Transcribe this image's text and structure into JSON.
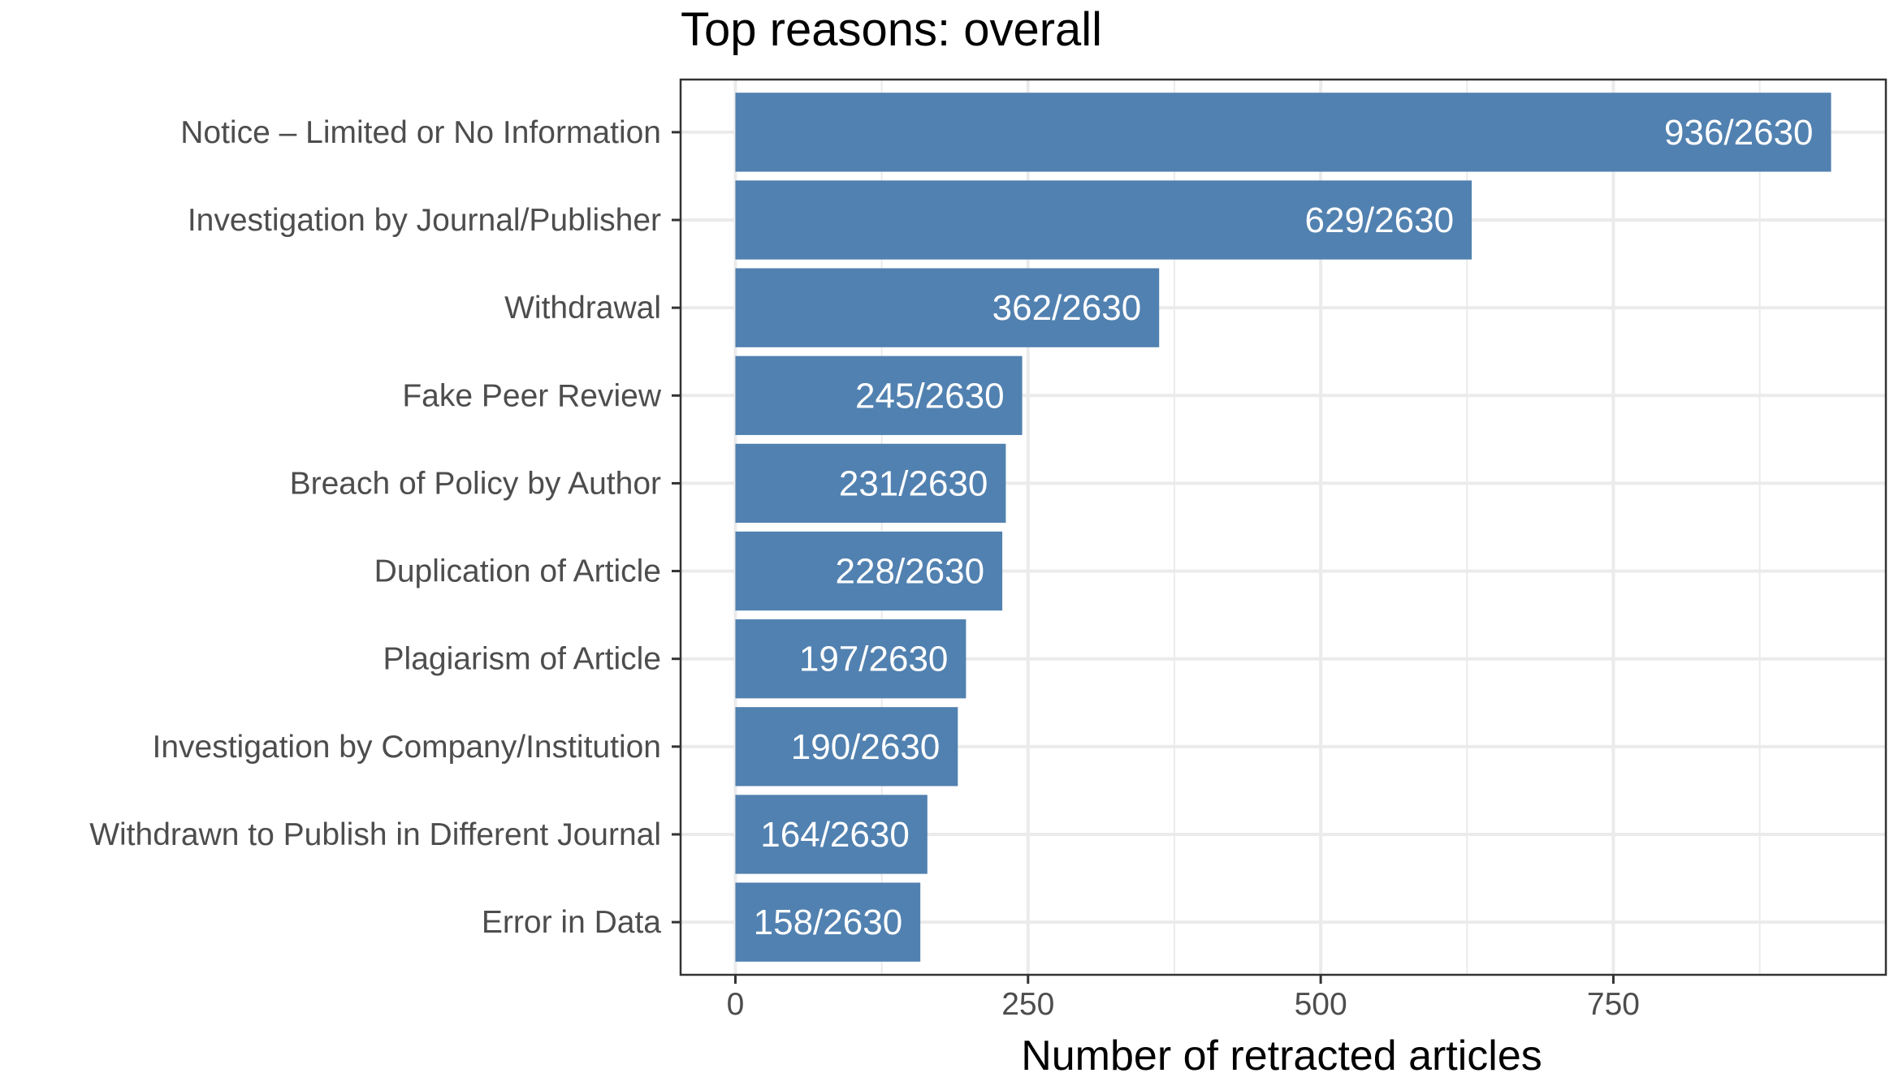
{
  "chart_data": {
    "type": "bar",
    "orientation": "horizontal",
    "title": "Top reasons: overall",
    "xlabel": "Number of retracted articles",
    "ylabel": "",
    "categories": [
      "Notice – Limited or No Information",
      "Investigation by Journal/Publisher",
      "Withdrawal",
      "Fake Peer Review",
      "Breach of Policy by Author",
      "Duplication of Article",
      "Plagiarism of Article",
      "Investigation by Company/Institution",
      "Withdrawn to Publish in Different Journal",
      "Error in Data"
    ],
    "values": [
      936,
      629,
      362,
      245,
      231,
      228,
      197,
      190,
      164,
      158
    ],
    "data_labels": [
      "936/2630",
      "629/2630",
      "362/2630",
      "245/2630",
      "231/2630",
      "228/2630",
      "197/2630",
      "190/2630",
      "164/2630",
      "158/2630"
    ],
    "xlim": [
      -46.8,
      982.8
    ],
    "x_ticks": [
      0,
      250,
      500,
      750
    ],
    "x_tick_labels": [
      "0",
      "250",
      "500",
      "750"
    ],
    "x_minor_ticks": [
      125,
      375,
      625,
      875
    ],
    "grid": true,
    "legend": "none",
    "colors": {
      "bar": "#5181b0",
      "bar_label": "#ffffff",
      "grid": "#ebebeb",
      "panel_border": "#333333",
      "axis_text": "#4d4d4d",
      "title": "#000000"
    }
  }
}
